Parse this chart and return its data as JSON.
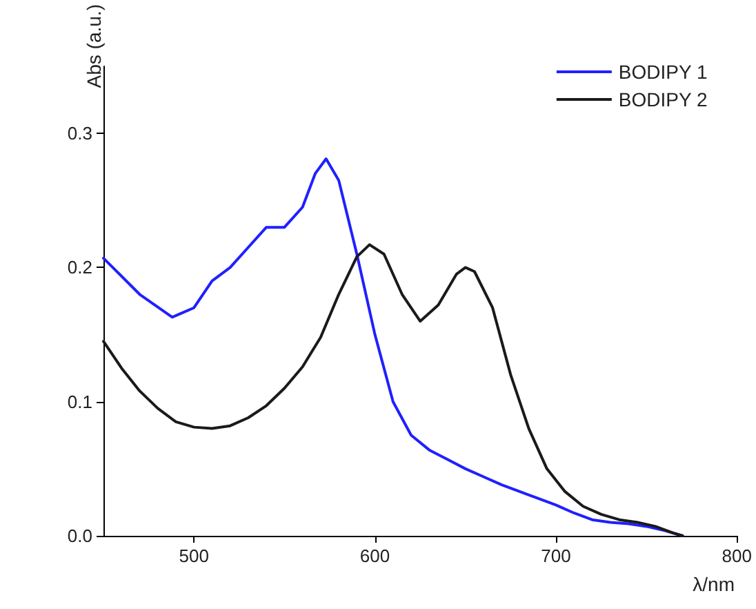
{
  "chart_data": {
    "type": "line",
    "xlabel": "λ/nm",
    "ylabel": "Abs (a.u.)",
    "xlim": [
      450,
      800
    ],
    "xticks": [
      500,
      600,
      700,
      800
    ],
    "ylim": [
      0,
      0.35
    ],
    "yticks": [
      {
        "value": 0,
        "label": "0.0"
      },
      0.1,
      0.2,
      0.3
    ],
    "grid": false,
    "legend": "top right",
    "marker": "none",
    "line_style": "solid",
    "series": [
      {
        "name": "BODIPY 1",
        "color": "#2020ff",
        "x": [
          450,
          470,
          488,
          500,
          510,
          520,
          530,
          540,
          550,
          560,
          567,
          573,
          580,
          590,
          600,
          610,
          620,
          630,
          640,
          650,
          660,
          670,
          680,
          690,
          700,
          710,
          720,
          730,
          740,
          750,
          760,
          770
        ],
        "values": [
          0.207,
          0.18,
          0.163,
          0.17,
          0.19,
          0.2,
          0.215,
          0.23,
          0.23,
          0.245,
          0.27,
          0.281,
          0.265,
          0.21,
          0.15,
          0.1,
          0.075,
          0.064,
          0.057,
          0.05,
          0.044,
          0.038,
          0.033,
          0.028,
          0.023,
          0.017,
          0.012,
          0.01,
          0.009,
          0.007,
          0.004,
          0
        ]
      },
      {
        "name": "BODIPY 2",
        "color": "#1a1a1a",
        "x": [
          450,
          460,
          470,
          480,
          490,
          500,
          510,
          520,
          530,
          540,
          550,
          560,
          570,
          580,
          590,
          597,
          605,
          615,
          625,
          635,
          645,
          650,
          655,
          665,
          675,
          685,
          695,
          705,
          715,
          725,
          735,
          745,
          755,
          765,
          770
        ],
        "values": [
          0.145,
          0.125,
          0.108,
          0.095,
          0.085,
          0.081,
          0.08,
          0.082,
          0.088,
          0.097,
          0.11,
          0.126,
          0.148,
          0.18,
          0.208,
          0.217,
          0.21,
          0.18,
          0.16,
          0.172,
          0.195,
          0.2,
          0.197,
          0.17,
          0.12,
          0.08,
          0.05,
          0.033,
          0.022,
          0.016,
          0.012,
          0.01,
          0.007,
          0.002,
          0
        ]
      }
    ]
  }
}
